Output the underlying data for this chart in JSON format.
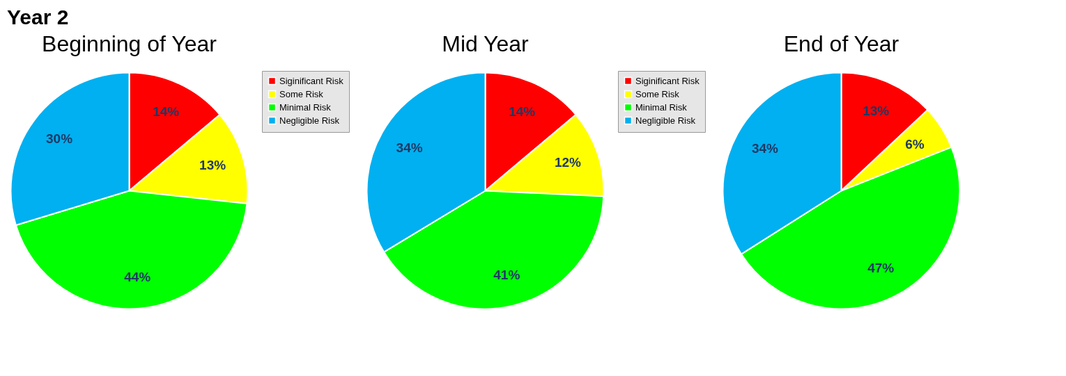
{
  "chart_data": [
    {
      "type": "pie",
      "title": "Beginning of Year",
      "annotations": [
        "Year 2"
      ],
      "categories": [
        "Siginificant Risk",
        "Some Risk",
        "Minimal Risk",
        "Negligible Risk"
      ],
      "values": [
        14,
        13,
        44,
        30
      ],
      "value_labels": [
        "14%",
        "13%",
        "44%",
        "30%"
      ],
      "colors": [
        "#ff0000",
        "#ffff00",
        "#00ff00",
        "#00b0f0"
      ],
      "legend": "right"
    },
    {
      "type": "pie",
      "title": "Mid Year",
      "categories": [
        "Siginificant Risk",
        "Some Risk",
        "Minimal Risk",
        "Negligible Risk"
      ],
      "values": [
        14,
        12,
        41,
        34
      ],
      "value_labels": [
        "14%",
        "12%",
        "41%",
        "34%"
      ],
      "colors": [
        "#ff0000",
        "#ffff00",
        "#00ff00",
        "#00b0f0"
      ],
      "legend": "right"
    },
    {
      "type": "pie",
      "title": "End of Year",
      "categories": [
        null,
        null,
        null,
        null
      ],
      "values": [
        13,
        6,
        47,
        34
      ],
      "value_labels": [
        "13%",
        "6%",
        "47%",
        "34%"
      ],
      "colors": [
        "#ff0000",
        "#ffff00",
        "#00ff00",
        "#00b0f0"
      ]
    }
  ]
}
